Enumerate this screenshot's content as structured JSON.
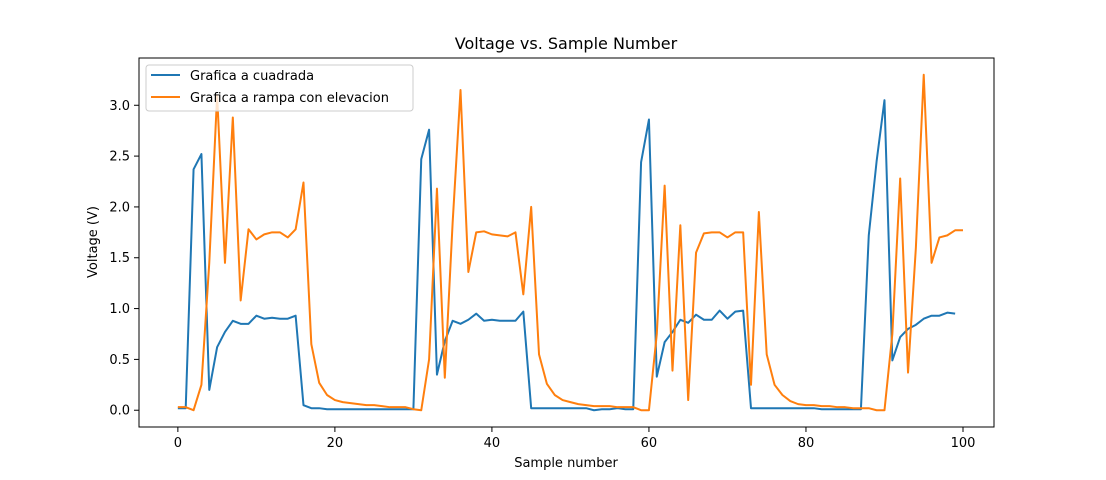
{
  "chart_data": {
    "type": "line",
    "title": "Voltage vs. Sample Number",
    "xlabel": "Sample number",
    "ylabel": "Voltage (V)",
    "xlim": [
      -4.95,
      103.95
    ],
    "ylim": [
      -0.165,
      3.465
    ],
    "xticks": [
      0,
      20,
      40,
      60,
      80,
      100
    ],
    "xtick_labels": [
      "0",
      "20",
      "40",
      "60",
      "80",
      "100"
    ],
    "yticks": [
      0.0,
      0.5,
      1.0,
      1.5,
      2.0,
      2.5,
      3.0
    ],
    "ytick_labels": [
      "0.0",
      "0.5",
      "1.0",
      "1.5",
      "2.0",
      "2.5",
      "3.0"
    ],
    "grid": false,
    "legend_position": "upper-left",
    "series": [
      {
        "name": "Grafica a cuadrada",
        "color": "#1f77b4",
        "values": [
          0.02,
          0.02,
          2.37,
          2.52,
          0.2,
          0.62,
          0.77,
          0.88,
          0.85,
          0.85,
          0.93,
          0.9,
          0.91,
          0.9,
          0.9,
          0.93,
          0.05,
          0.02,
          0.02,
          0.01,
          0.01,
          0.01,
          0.01,
          0.01,
          0.01,
          0.01,
          0.01,
          0.01,
          0.01,
          0.01,
          0.01,
          2.47,
          2.76,
          0.35,
          0.68,
          0.88,
          0.85,
          0.89,
          0.95,
          0.88,
          0.89,
          0.88,
          0.88,
          0.88,
          0.97,
          0.02,
          0.02,
          0.02,
          0.02,
          0.02,
          0.02,
          0.02,
          0.02,
          0.0,
          0.01,
          0.01,
          0.02,
          0.01,
          0.01,
          2.44,
          2.86,
          0.33,
          0.67,
          0.77,
          0.89,
          0.86,
          0.94,
          0.89,
          0.89,
          0.98,
          0.9,
          0.97,
          0.98,
          0.02,
          0.02,
          0.02,
          0.02,
          0.02,
          0.02,
          0.02,
          0.02,
          0.02,
          0.01,
          0.01,
          0.01,
          0.01,
          0.01,
          0.01,
          1.72,
          2.45,
          3.05,
          0.49,
          0.72,
          0.8,
          0.84,
          0.9,
          0.93,
          0.93,
          0.96,
          0.95
        ]
      },
      {
        "name": "Grafica a rampa con elevacion",
        "color": "#ff7f0e",
        "values": [
          0.03,
          0.03,
          0.0,
          0.25,
          1.45,
          3.1,
          1.45,
          2.88,
          1.08,
          1.78,
          1.68,
          1.73,
          1.75,
          1.75,
          1.7,
          1.78,
          2.24,
          0.65,
          0.27,
          0.15,
          0.1,
          0.08,
          0.07,
          0.06,
          0.05,
          0.05,
          0.04,
          0.03,
          0.03,
          0.03,
          0.01,
          0.0,
          0.5,
          2.18,
          0.32,
          1.85,
          3.15,
          1.36,
          1.75,
          1.76,
          1.73,
          1.72,
          1.71,
          1.75,
          1.14,
          2.0,
          0.55,
          0.26,
          0.15,
          0.1,
          0.08,
          0.06,
          0.05,
          0.04,
          0.04,
          0.04,
          0.03,
          0.03,
          0.03,
          0.0,
          0.0,
          0.75,
          2.21,
          0.39,
          1.82,
          0.1,
          1.55,
          1.74,
          1.75,
          1.75,
          1.7,
          1.75,
          1.75,
          0.25,
          1.95,
          0.55,
          0.25,
          0.15,
          0.09,
          0.06,
          0.05,
          0.05,
          0.04,
          0.04,
          0.03,
          0.03,
          0.02,
          0.02,
          0.02,
          0.0,
          0.0,
          0.75,
          2.28,
          0.37,
          1.6,
          3.3,
          1.45,
          1.7,
          1.72,
          1.77,
          1.77
        ]
      }
    ]
  }
}
